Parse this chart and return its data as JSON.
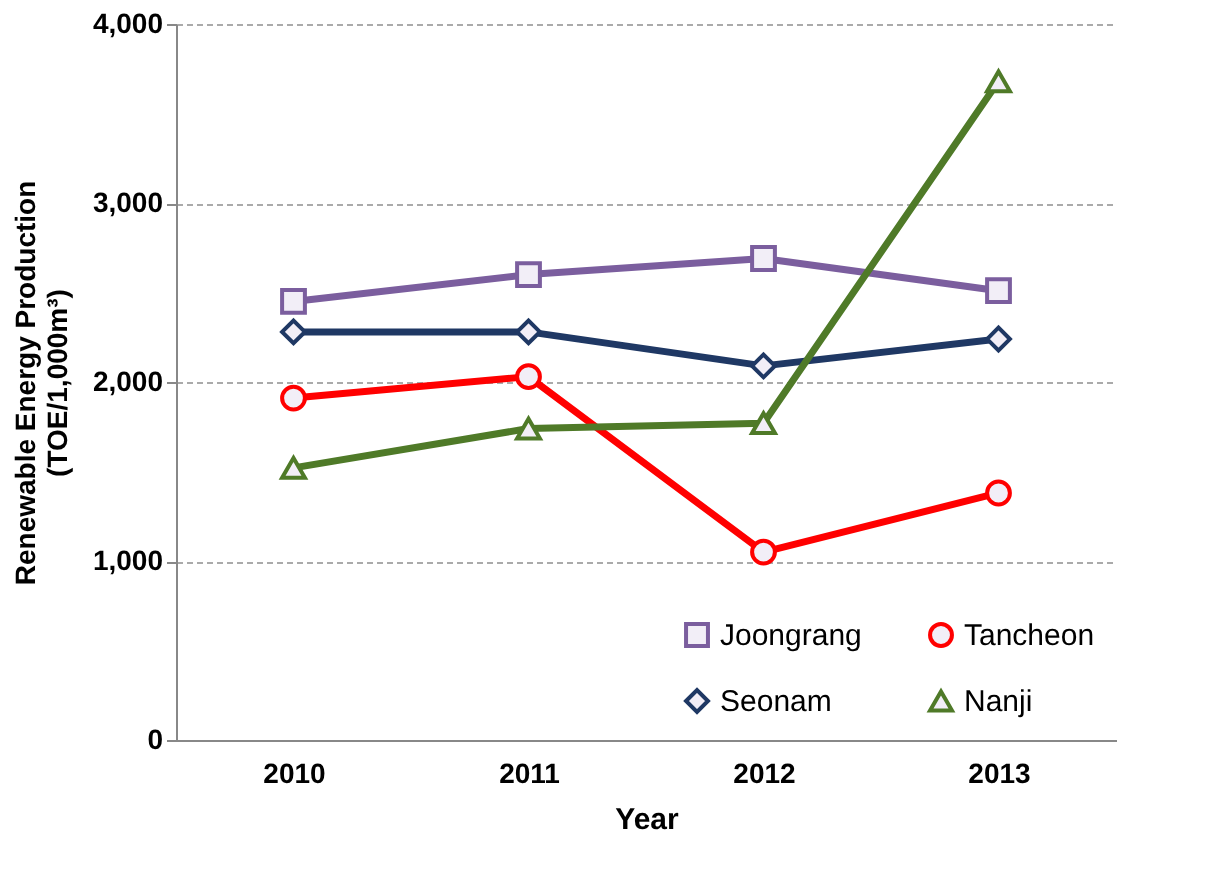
{
  "chart_data": {
    "type": "line",
    "xlabel": "Year",
    "ylabel": "Renewable Energy Production\n(TOE/1,000m³)",
    "categories": [
      "2010",
      "2011",
      "2012",
      "2013"
    ],
    "series": [
      {
        "name": "Joongrang",
        "color": "#7b5e9e",
        "marker": "square",
        "values": [
          2450,
          2600,
          2690,
          2510
        ]
      },
      {
        "name": "Tancheon",
        "color": "#ff0000",
        "marker": "circle",
        "values": [
          1910,
          2030,
          1050,
          1380
        ]
      },
      {
        "name": "Seonam",
        "color": "#1f3864",
        "marker": "diamond",
        "values": [
          2280,
          2280,
          2090,
          2240
        ]
      },
      {
        "name": "Nanji",
        "color": "#4f7a28",
        "marker": "triangle",
        "values": [
          1520,
          1740,
          1770,
          3680
        ]
      }
    ],
    "ylim": [
      0,
      4000
    ],
    "yticks": [
      0,
      {
        "value": 1000,
        "label": "1,000"
      },
      {
        "value": 2000,
        "label": "2,000"
      },
      {
        "value": 3000,
        "label": "3,000"
      },
      {
        "value": 4000,
        "label": "4,000"
      }
    ],
    "grid": "y",
    "legend": "bottom right",
    "line_style": "solid"
  }
}
